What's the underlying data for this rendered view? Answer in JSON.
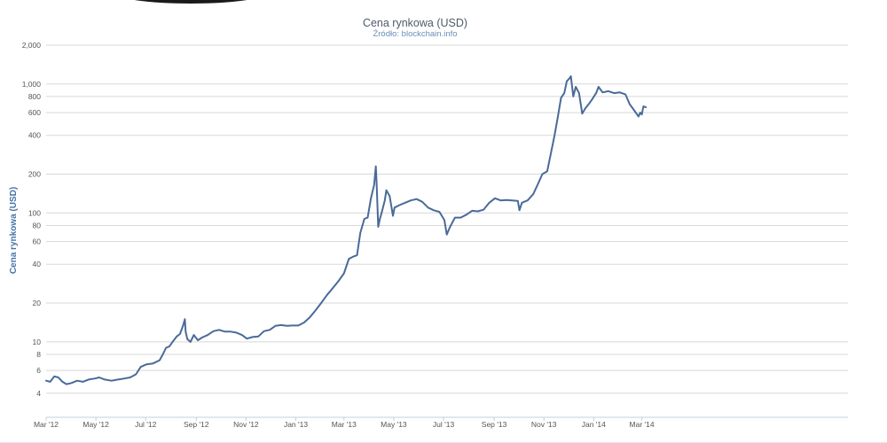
{
  "chart_data": {
    "type": "line",
    "title": "Cena rynkowa (USD)",
    "subtitle": "Źródło: blockchain.info",
    "ylabel": "Cena rynkowa (USD)",
    "y_scale": "log",
    "ylim": [
      2.6,
      2000
    ],
    "xlim": [
      "2012-03-01",
      "2014-03-10"
    ],
    "grid": true,
    "y_ticks": [
      {
        "value": 2000,
        "label": "2,000"
      },
      {
        "value": 1000,
        "label": "1,000"
      },
      {
        "value": 800,
        "label": "800"
      },
      {
        "value": 600,
        "label": "600"
      },
      {
        "value": 400,
        "label": "400"
      },
      {
        "value": 200,
        "label": "200"
      },
      {
        "value": 100,
        "label": "100"
      },
      {
        "value": 80,
        "label": "80"
      },
      {
        "value": 60,
        "label": "60"
      },
      {
        "value": 40,
        "label": "40"
      },
      {
        "value": 20,
        "label": "20"
      },
      {
        "value": 10,
        "label": "10"
      },
      {
        "value": 8,
        "label": "8"
      },
      {
        "value": 6,
        "label": "6"
      },
      {
        "value": 4,
        "label": "4"
      }
    ],
    "x_ticks": [
      {
        "date": "2012-03-01",
        "label": "Mar '12"
      },
      {
        "date": "2012-05-01",
        "label": "May '12"
      },
      {
        "date": "2012-07-01",
        "label": "Jul '12"
      },
      {
        "date": "2012-09-01",
        "label": "Sep '12"
      },
      {
        "date": "2012-11-01",
        "label": "Nov '12"
      },
      {
        "date": "2013-01-01",
        "label": "Jan '13"
      },
      {
        "date": "2013-03-01",
        "label": "Mar '13"
      },
      {
        "date": "2013-05-01",
        "label": "May '13"
      },
      {
        "date": "2013-07-01",
        "label": "Jul '13"
      },
      {
        "date": "2013-09-01",
        "label": "Sep '13"
      },
      {
        "date": "2013-11-01",
        "label": "Nov '13"
      },
      {
        "date": "2014-01-01",
        "label": "Jan '14"
      },
      {
        "date": "2014-03-01",
        "label": "Mar '14"
      }
    ],
    "series": [
      {
        "color": "#4a6a99",
        "points": [
          [
            "2012-03-01",
            5.0
          ],
          [
            "2012-03-06",
            4.9
          ],
          [
            "2012-03-11",
            5.4
          ],
          [
            "2012-03-16",
            5.3
          ],
          [
            "2012-03-21",
            4.9
          ],
          [
            "2012-03-26",
            4.7
          ],
          [
            "2012-04-01",
            4.8
          ],
          [
            "2012-04-08",
            5.0
          ],
          [
            "2012-04-15",
            4.9
          ],
          [
            "2012-04-22",
            5.1
          ],
          [
            "2012-04-30",
            5.2
          ],
          [
            "2012-05-05",
            5.3
          ],
          [
            "2012-05-12",
            5.1
          ],
          [
            "2012-05-20",
            5.0
          ],
          [
            "2012-05-28",
            5.1
          ],
          [
            "2012-06-05",
            5.2
          ],
          [
            "2012-06-12",
            5.3
          ],
          [
            "2012-06-19",
            5.6
          ],
          [
            "2012-06-25",
            6.4
          ],
          [
            "2012-07-02",
            6.7
          ],
          [
            "2012-07-10",
            6.8
          ],
          [
            "2012-07-18",
            7.2
          ],
          [
            "2012-07-22",
            8.0
          ],
          [
            "2012-07-26",
            9.0
          ],
          [
            "2012-07-30",
            9.2
          ],
          [
            "2012-08-04",
            10.2
          ],
          [
            "2012-08-08",
            11.0
          ],
          [
            "2012-08-12",
            11.5
          ],
          [
            "2012-08-16",
            13.5
          ],
          [
            "2012-08-18",
            15.0
          ],
          [
            "2012-08-19",
            12.0
          ],
          [
            "2012-08-21",
            10.5
          ],
          [
            "2012-08-25",
            10.0
          ],
          [
            "2012-08-29",
            11.3
          ],
          [
            "2012-09-03",
            10.3
          ],
          [
            "2012-09-08",
            10.8
          ],
          [
            "2012-09-15",
            11.3
          ],
          [
            "2012-09-22",
            12.1
          ],
          [
            "2012-09-29",
            12.4
          ],
          [
            "2012-10-06",
            12.0
          ],
          [
            "2012-10-13",
            12.0
          ],
          [
            "2012-10-20",
            11.8
          ],
          [
            "2012-10-27",
            11.3
          ],
          [
            "2012-11-02",
            10.6
          ],
          [
            "2012-11-09",
            10.9
          ],
          [
            "2012-11-16",
            11.0
          ],
          [
            "2012-11-23",
            12.1
          ],
          [
            "2012-11-30",
            12.4
          ],
          [
            "2012-12-07",
            13.3
          ],
          [
            "2012-12-14",
            13.5
          ],
          [
            "2012-12-21",
            13.3
          ],
          [
            "2012-12-28",
            13.4
          ],
          [
            "2013-01-04",
            13.4
          ],
          [
            "2013-01-11",
            14.1
          ],
          [
            "2013-01-18",
            15.5
          ],
          [
            "2013-01-25",
            17.5
          ],
          [
            "2013-02-01",
            20.0
          ],
          [
            "2013-02-08",
            23.0
          ],
          [
            "2013-02-15",
            26.0
          ],
          [
            "2013-02-22",
            29.5
          ],
          [
            "2013-03-01",
            34.0
          ],
          [
            "2013-03-07",
            44.0
          ],
          [
            "2013-03-13",
            46.0
          ],
          [
            "2013-03-17",
            47.0
          ],
          [
            "2013-03-21",
            70.0
          ],
          [
            "2013-03-26",
            90.0
          ],
          [
            "2013-03-30",
            92.0
          ],
          [
            "2013-04-03",
            130.0
          ],
          [
            "2013-04-07",
            165.0
          ],
          [
            "2013-04-09",
            230.0
          ],
          [
            "2013-04-10",
            170.0
          ],
          [
            "2013-04-12",
            78.0
          ],
          [
            "2013-04-14",
            90.0
          ],
          [
            "2013-04-17",
            105.0
          ],
          [
            "2013-04-20",
            125.0
          ],
          [
            "2013-04-22",
            150.0
          ],
          [
            "2013-04-26",
            135.0
          ],
          [
            "2013-04-30",
            95.0
          ],
          [
            "2013-05-02",
            110.0
          ],
          [
            "2013-05-08",
            115.0
          ],
          [
            "2013-05-15",
            120.0
          ],
          [
            "2013-05-22",
            125.0
          ],
          [
            "2013-05-29",
            128.0
          ],
          [
            "2013-06-05",
            122.0
          ],
          [
            "2013-06-12",
            110.0
          ],
          [
            "2013-06-19",
            105.0
          ],
          [
            "2013-06-26",
            102.0
          ],
          [
            "2013-07-02",
            88.0
          ],
          [
            "2013-07-05",
            68.0
          ],
          [
            "2013-07-09",
            78.0
          ],
          [
            "2013-07-15",
            92.0
          ],
          [
            "2013-07-22",
            92.0
          ],
          [
            "2013-07-29",
            97.0
          ],
          [
            "2013-08-05",
            104.0
          ],
          [
            "2013-08-12",
            103.0
          ],
          [
            "2013-08-19",
            106.0
          ],
          [
            "2013-08-26",
            120.0
          ],
          [
            "2013-09-02",
            130.0
          ],
          [
            "2013-09-09",
            125.0
          ],
          [
            "2013-09-16",
            126.0
          ],
          [
            "2013-09-23",
            125.0
          ],
          [
            "2013-09-30",
            124.0
          ],
          [
            "2013-10-02",
            105.0
          ],
          [
            "2013-10-05",
            120.0
          ],
          [
            "2013-10-12",
            125.0
          ],
          [
            "2013-10-19",
            140.0
          ],
          [
            "2013-10-26",
            175.0
          ],
          [
            "2013-10-30",
            200.0
          ],
          [
            "2013-11-05",
            210.0
          ],
          [
            "2013-11-10",
            300.0
          ],
          [
            "2013-11-14",
            400.0
          ],
          [
            "2013-11-18",
            550.0
          ],
          [
            "2013-11-22",
            780.0
          ],
          [
            "2013-11-26",
            850.0
          ],
          [
            "2013-11-29",
            1050.0
          ],
          [
            "2013-12-02",
            1100.0
          ],
          [
            "2013-12-04",
            1150.0
          ],
          [
            "2013-12-07",
            800.0
          ],
          [
            "2013-12-10",
            950.0
          ],
          [
            "2013-12-14",
            850.0
          ],
          [
            "2013-12-18",
            590.0
          ],
          [
            "2013-12-22",
            650.0
          ],
          [
            "2013-12-26",
            700.0
          ],
          [
            "2013-12-30",
            760.0
          ],
          [
            "2014-01-04",
            850.0
          ],
          [
            "2014-01-07",
            950.0
          ],
          [
            "2014-01-12",
            860.0
          ],
          [
            "2014-01-19",
            880.0
          ],
          [
            "2014-01-26",
            850.0
          ],
          [
            "2014-02-02",
            860.0
          ],
          [
            "2014-02-09",
            830.0
          ],
          [
            "2014-02-14",
            700.0
          ],
          [
            "2014-02-20",
            620.0
          ],
          [
            "2014-02-25",
            560.0
          ],
          [
            "2014-02-27",
            600.0
          ],
          [
            "2014-03-01",
            580.0
          ],
          [
            "2014-03-03",
            670.0
          ],
          [
            "2014-03-06",
            660.0
          ]
        ]
      }
    ]
  }
}
